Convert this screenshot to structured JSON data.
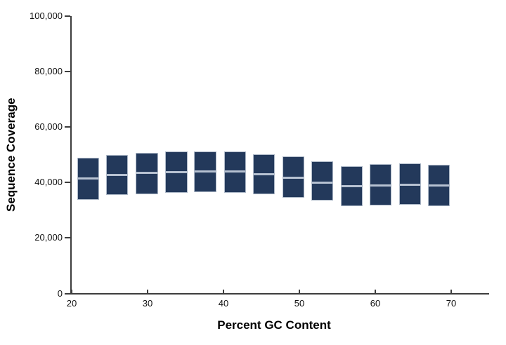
{
  "chart_data": {
    "type": "boxplot",
    "title": "",
    "xlabel": "Percent GC Content",
    "ylabel": "Sequence Coverage",
    "xlim": [
      20,
      75
    ],
    "ylim": [
      0,
      100000
    ],
    "grid": false,
    "legend": null,
    "x_ticks": [
      {
        "value": 20,
        "label": "20"
      },
      {
        "value": 30,
        "label": "30"
      },
      {
        "value": 40,
        "label": "40"
      },
      {
        "value": 50,
        "label": "50"
      },
      {
        "value": 60,
        "label": "60"
      },
      {
        "value": 70,
        "label": "70"
      }
    ],
    "y_ticks": [
      {
        "value": 0,
        "label": "0"
      },
      {
        "value": 20000,
        "label": "20,000"
      },
      {
        "value": 40000,
        "label": "40,000"
      },
      {
        "value": 60000,
        "label": "60,000"
      },
      {
        "value": 80000,
        "label": "80,000"
      },
      {
        "value": 100000,
        "label": "100,000"
      }
    ],
    "box_width_gc": 2.9,
    "boxes": [
      {
        "gc": 22.2,
        "q1": 33800,
        "median": 41400,
        "q3": 48800
      },
      {
        "gc": 26.0,
        "q1": 35400,
        "median": 42700,
        "q3": 50000
      },
      {
        "gc": 29.9,
        "q1": 35900,
        "median": 43400,
        "q3": 50700
      },
      {
        "gc": 33.8,
        "q1": 36400,
        "median": 43800,
        "q3": 51100
      },
      {
        "gc": 37.6,
        "q1": 36600,
        "median": 43900,
        "q3": 51300
      },
      {
        "gc": 41.5,
        "q1": 36400,
        "median": 44100,
        "q3": 51300
      },
      {
        "gc": 45.3,
        "q1": 35900,
        "median": 42900,
        "q3": 50300
      },
      {
        "gc": 49.2,
        "q1": 34500,
        "median": 41800,
        "q3": 49400
      },
      {
        "gc": 53.0,
        "q1": 33400,
        "median": 39900,
        "q3": 47700
      },
      {
        "gc": 56.9,
        "q1": 31500,
        "median": 38600,
        "q3": 46000
      },
      {
        "gc": 60.7,
        "q1": 31700,
        "median": 38900,
        "q3": 46600
      },
      {
        "gc": 64.6,
        "q1": 32000,
        "median": 39300,
        "q3": 46900
      },
      {
        "gc": 68.4,
        "q1": 31600,
        "median": 38900,
        "q3": 46500
      }
    ]
  },
  "colors": {
    "box_fill": "#23395b",
    "box_border": "#aeb9c8",
    "median_line": "#b7c2d2",
    "axis": "#3d3d3d",
    "text": "#000000",
    "background": "#ffffff"
  }
}
